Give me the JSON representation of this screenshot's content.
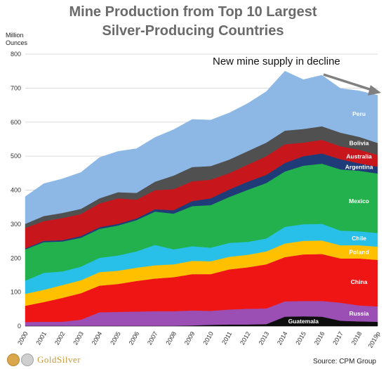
{
  "title_line1": "Mine Production from Top 10 Largest",
  "title_line2": "Silver-Producing  Countries",
  "unit_line1": "Million",
  "unit_line2": "Ounces",
  "annotation": "New mine supply in decline",
  "source": "Source: CPM Group",
  "logo": {
    "text": "GoldSilver",
    "icon": "gold-silver-coins-logo"
  },
  "chart_data": {
    "type": "area",
    "stacked": true,
    "categories": [
      "2000",
      "2001",
      "2002",
      "2003",
      "2004",
      "2005",
      "2006",
      "2007",
      "2008",
      "2009",
      "2010",
      "2011",
      "2012",
      "2013",
      "2014",
      "2015",
      "2016",
      "2017",
      "2018",
      "2019p"
    ],
    "ylim": [
      0,
      800
    ],
    "yticks": [
      0,
      100,
      200,
      300,
      400,
      500,
      600,
      700,
      800
    ],
    "grid": true,
    "series": [
      {
        "name": "Guatemala",
        "color": "#0d0d0d",
        "values": [
          1,
          1,
          1,
          1,
          1,
          1,
          1,
          1,
          1,
          2,
          4,
          5,
          5,
          6,
          28,
          29,
          28,
          16,
          14,
          13
        ]
      },
      {
        "name": "Russia",
        "color": "#9b4fb5",
        "values": [
          11,
          12,
          12,
          18,
          40,
          41,
          42,
          43,
          43,
          44,
          41,
          44,
          46,
          46,
          45,
          45,
          46,
          53,
          47,
          45
        ]
      },
      {
        "name": "China",
        "color": "#f01515",
        "values": [
          48,
          58,
          70,
          78,
          78,
          82,
          90,
          96,
          100,
          107,
          108,
          118,
          122,
          130,
          130,
          137,
          138,
          130,
          138,
          137
        ]
      },
      {
        "name": "Poland",
        "color": "#ffc000",
        "values": [
          35,
          36,
          38,
          38,
          40,
          39,
          39,
          39,
          38,
          39,
          38,
          37,
          37,
          38,
          40,
          40,
          40,
          39,
          39,
          39
        ]
      },
      {
        "name": "Chile",
        "color": "#28c0e8",
        "values": [
          39,
          50,
          40,
          40,
          42,
          45,
          48,
          60,
          44,
          43,
          40,
          41,
          38,
          38,
          49,
          49,
          49,
          43,
          41,
          40
        ]
      },
      {
        "name": "Mexico",
        "color": "#22b14c",
        "values": [
          92,
          90,
          88,
          85,
          85,
          88,
          92,
          98,
          105,
          118,
          125,
          135,
          153,
          163,
          163,
          172,
          177,
          180,
          178,
          175
        ]
      },
      {
        "name": "Argentina",
        "color": "#1f3c78",
        "values": [
          3,
          4,
          4,
          5,
          5,
          5,
          5,
          7,
          10,
          15,
          20,
          22,
          24,
          24,
          25,
          28,
          30,
          30,
          22,
          20
        ]
      },
      {
        "name": "Australia",
        "color": "#c8161d",
        "values": [
          60,
          58,
          65,
          65,
          70,
          75,
          55,
          56,
          62,
          58,
          55,
          48,
          50,
          55,
          55,
          40,
          40,
          38,
          40,
          35
        ]
      },
      {
        "name": "Bolivia",
        "color": "#505050",
        "values": [
          12,
          15,
          15,
          15,
          15,
          18,
          20,
          25,
          40,
          42,
          40,
          40,
          40,
          40,
          40,
          40,
          40,
          40,
          38,
          35
        ]
      },
      {
        "name": "Peru",
        "color": "#8db8e6",
        "values": [
          80,
          95,
          100,
          107,
          120,
          120,
          130,
          130,
          135,
          140,
          135,
          137,
          140,
          150,
          175,
          145,
          150,
          130,
          135,
          140
        ]
      }
    ]
  }
}
